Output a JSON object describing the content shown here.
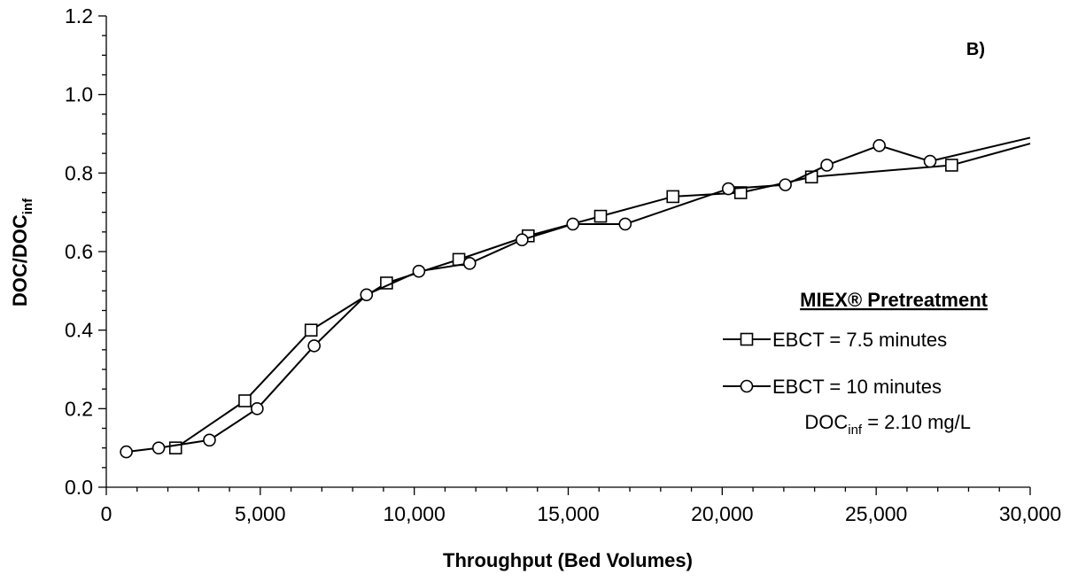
{
  "chart_data": {
    "type": "line",
    "panel_label": "B)",
    "xlabel": "Throughput (Bed Volumes)",
    "ylabel": {
      "main": "DOC/DOC",
      "sub": "inf"
    },
    "xlim": [
      0,
      30000
    ],
    "ylim": [
      0.0,
      1.2
    ],
    "x_ticks": [
      {
        "value": 0,
        "label": "0"
      },
      {
        "value": 5000,
        "label": "5,000"
      },
      {
        "value": 10000,
        "label": "10,000"
      },
      {
        "value": 15000,
        "label": "15,000"
      },
      {
        "value": 20000,
        "label": "20,000"
      },
      {
        "value": 25000,
        "label": "25,000"
      },
      {
        "value": 30000,
        "label": "30,000"
      }
    ],
    "y_ticks": [
      {
        "value": 0.0,
        "label": "0.0"
      },
      {
        "value": 0.2,
        "label": "0.2"
      },
      {
        "value": 0.4,
        "label": "0.4"
      },
      {
        "value": 0.6,
        "label": "0.6"
      },
      {
        "value": 0.8,
        "label": "0.8"
      },
      {
        "value": 1.0,
        "label": "1.0"
      },
      {
        "value": 1.2,
        "label": "1.2"
      }
    ],
    "x_minor_step": 1000,
    "y_minor_step": 0.05,
    "grid": false,
    "legend": {
      "placement": "lower-right",
      "title": "MIEX® Pretreatment",
      "note": {
        "main": "DOC",
        "sub": "inf",
        "rest": " = 2.10 mg/L"
      }
    },
    "series": [
      {
        "name": "EBCT = 7.5 minutes",
        "marker": "square",
        "x": [
          2250,
          4500,
          6650,
          9100,
          11450,
          13700,
          16050,
          18400,
          20600,
          22900,
          27450
        ],
        "y": [
          0.1,
          0.22,
          0.4,
          0.52,
          0.58,
          0.64,
          0.69,
          0.74,
          0.75,
          0.79,
          0.82
        ],
        "trend_end": [
          30000,
          0.875
        ]
      },
      {
        "name": "EBCT = 10 minutes",
        "marker": "circle",
        "x": [
          650,
          1700,
          3350,
          4900,
          6750,
          8450,
          10150,
          11800,
          13500,
          15150,
          16850,
          20200,
          22050,
          23400,
          25100,
          26750
        ],
        "y": [
          0.09,
          0.1,
          0.12,
          0.2,
          0.36,
          0.49,
          0.55,
          0.57,
          0.63,
          0.67,
          0.67,
          0.76,
          0.77,
          0.82,
          0.87,
          0.83
        ],
        "trend_end": [
          30000,
          0.89
        ]
      }
    ]
  }
}
